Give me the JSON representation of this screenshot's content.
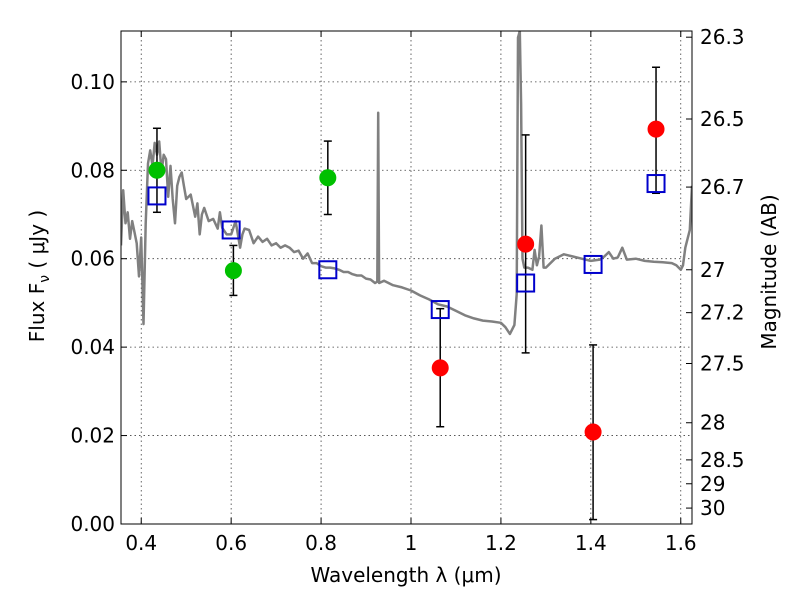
{
  "chart_data": {
    "type": "scatter",
    "xlabel": "Wavelength  λ (μm)",
    "ylabel": "Flux  F",
    "ylabel_sub": "ν",
    "ylabel_unit": "  ( μJy )",
    "y2label": "Magnitude (AB)",
    "xlim": [
      0.355,
      1.625
    ],
    "ylim": [
      0.0,
      0.1115
    ],
    "grid": true,
    "x_ticks": [
      {
        "value": 0.4,
        "label": "0.4"
      },
      {
        "value": 0.6,
        "label": "0.6"
      },
      {
        "value": 0.8,
        "label": "0.8"
      },
      {
        "value": 1.0,
        "label": "1"
      },
      {
        "value": 1.2,
        "label": "1.2"
      },
      {
        "value": 1.4,
        "label": "1.4"
      },
      {
        "value": 1.6,
        "label": "1.6"
      }
    ],
    "y_ticks": [
      {
        "value": 0.0,
        "label": "0.00"
      },
      {
        "value": 0.02,
        "label": "0.02"
      },
      {
        "value": 0.04,
        "label": "0.04"
      },
      {
        "value": 0.06,
        "label": "0.06"
      },
      {
        "value": 0.08,
        "label": "0.08"
      },
      {
        "value": 0.1,
        "label": "0.10"
      }
    ],
    "y2_ticks": [
      {
        "flux": 0.1101,
        "label": "26.3"
      },
      {
        "flux": 0.0916,
        "label": "26.5"
      },
      {
        "flux": 0.0762,
        "label": "26.7"
      },
      {
        "flux": 0.0575,
        "label": "27"
      },
      {
        "flux": 0.0478,
        "label": "27.2"
      },
      {
        "flux": 0.0363,
        "label": "27.5"
      },
      {
        "flux": 0.0229,
        "label": "28"
      },
      {
        "flux": 0.0145,
        "label": "28.5"
      },
      {
        "flux": 0.0091,
        "label": "29"
      },
      {
        "flux": 0.0036,
        "label": "30"
      }
    ],
    "series": [
      {
        "type": "line",
        "color": "#808080",
        "points": [
          [
            0.355,
            0.063
          ],
          [
            0.36,
            0.0755
          ],
          [
            0.365,
            0.068
          ],
          [
            0.37,
            0.0705
          ],
          [
            0.375,
            0.0645
          ],
          [
            0.38,
            0.0685
          ],
          [
            0.385,
            0.066
          ],
          [
            0.39,
            0.0635
          ],
          [
            0.395,
            0.056
          ],
          [
            0.4,
            0.0648
          ],
          [
            0.405,
            0.0452
          ],
          [
            0.41,
            0.068
          ],
          [
            0.415,
            0.0815
          ],
          [
            0.42,
            0.0845
          ],
          [
            0.425,
            0.081
          ],
          [
            0.43,
            0.0862
          ],
          [
            0.435,
            0.0835
          ],
          [
            0.44,
            0.0865
          ],
          [
            0.445,
            0.0795
          ],
          [
            0.45,
            0.0835
          ],
          [
            0.455,
            0.0825
          ],
          [
            0.46,
            0.074
          ],
          [
            0.465,
            0.081
          ],
          [
            0.47,
            0.0735
          ],
          [
            0.475,
            0.068
          ],
          [
            0.48,
            0.0765
          ],
          [
            0.485,
            0.0785
          ],
          [
            0.49,
            0.0795
          ],
          [
            0.495,
            0.0765
          ],
          [
            0.5,
            0.0735
          ],
          [
            0.51,
            0.0745
          ],
          [
            0.52,
            0.0695
          ],
          [
            0.525,
            0.0725
          ],
          [
            0.53,
            0.0655
          ],
          [
            0.535,
            0.07
          ],
          [
            0.54,
            0.0715
          ],
          [
            0.55,
            0.0685
          ],
          [
            0.56,
            0.069
          ],
          [
            0.57,
            0.0668
          ],
          [
            0.575,
            0.0705
          ],
          [
            0.58,
            0.067
          ],
          [
            0.59,
            0.0655
          ],
          [
            0.6,
            0.0655
          ],
          [
            0.61,
            0.0685
          ],
          [
            0.62,
            0.0625
          ],
          [
            0.625,
            0.0655
          ],
          [
            0.63,
            0.0668
          ],
          [
            0.64,
            0.0665
          ],
          [
            0.65,
            0.0635
          ],
          [
            0.66,
            0.065
          ],
          [
            0.67,
            0.0638
          ],
          [
            0.68,
            0.0645
          ],
          [
            0.69,
            0.063
          ],
          [
            0.7,
            0.0635
          ],
          [
            0.71,
            0.0625
          ],
          [
            0.72,
            0.063
          ],
          [
            0.73,
            0.0625
          ],
          [
            0.74,
            0.0615
          ],
          [
            0.75,
            0.0618
          ],
          [
            0.76,
            0.06
          ],
          [
            0.77,
            0.0612
          ],
          [
            0.78,
            0.059
          ],
          [
            0.79,
            0.059
          ],
          [
            0.8,
            0.0583
          ],
          [
            0.81,
            0.058
          ],
          [
            0.82,
            0.058
          ],
          [
            0.83,
            0.0578
          ],
          [
            0.84,
            0.0575
          ],
          [
            0.85,
            0.057
          ],
          [
            0.86,
            0.057
          ],
          [
            0.87,
            0.0565
          ],
          [
            0.88,
            0.0562
          ],
          [
            0.89,
            0.0562
          ],
          [
            0.9,
            0.0555
          ],
          [
            0.91,
            0.0553
          ],
          [
            0.92,
            0.0545
          ],
          [
            0.925,
            0.0548
          ],
          [
            0.927,
            0.093
          ],
          [
            0.929,
            0.0545
          ],
          [
            0.94,
            0.055
          ],
          [
            0.95,
            0.0545
          ],
          [
            0.96,
            0.054
          ],
          [
            0.98,
            0.0535
          ],
          [
            1.0,
            0.0528
          ],
          [
            1.02,
            0.0517
          ],
          [
            1.04,
            0.0508
          ],
          [
            1.06,
            0.0497
          ],
          [
            1.08,
            0.0492
          ],
          [
            1.1,
            0.0482
          ],
          [
            1.12,
            0.0472
          ],
          [
            1.14,
            0.0465
          ],
          [
            1.16,
            0.046
          ],
          [
            1.18,
            0.0458
          ],
          [
            1.2,
            0.0455
          ],
          [
            1.21,
            0.0445
          ],
          [
            1.22,
            0.043
          ],
          [
            1.23,
            0.045
          ],
          [
            1.235,
            0.052
          ],
          [
            1.238,
            0.11
          ],
          [
            1.242,
            0.1115
          ],
          [
            1.245,
            0.095
          ],
          [
            1.248,
            0.06
          ],
          [
            1.252,
            0.058
          ],
          [
            1.26,
            0.058
          ],
          [
            1.27,
            0.0575
          ],
          [
            1.275,
            0.062
          ],
          [
            1.28,
            0.0585
          ],
          [
            1.285,
            0.0605
          ],
          [
            1.29,
            0.0675
          ],
          [
            1.295,
            0.058
          ],
          [
            1.3,
            0.058
          ],
          [
            1.32,
            0.06
          ],
          [
            1.34,
            0.061
          ],
          [
            1.36,
            0.0605
          ],
          [
            1.38,
            0.06
          ],
          [
            1.4,
            0.0595
          ],
          [
            1.42,
            0.0598
          ],
          [
            1.43,
            0.0605
          ],
          [
            1.44,
            0.0615
          ],
          [
            1.45,
            0.06
          ],
          [
            1.46,
            0.0603
          ],
          [
            1.47,
            0.0625
          ],
          [
            1.48,
            0.0598
          ],
          [
            1.5,
            0.06
          ],
          [
            1.52,
            0.0595
          ],
          [
            1.54,
            0.0593
          ],
          [
            1.56,
            0.0592
          ],
          [
            1.58,
            0.059
          ],
          [
            1.59,
            0.0585
          ],
          [
            1.6,
            0.0575
          ],
          [
            1.605,
            0.0585
          ],
          [
            1.61,
            0.0625
          ],
          [
            1.62,
            0.0665
          ],
          [
            1.625,
            0.0765
          ]
        ]
      },
      {
        "type": "points",
        "marker": "circle",
        "color": "#00c000",
        "points": [
          {
            "x": 0.435,
            "y": 0.08,
            "yerr_low": 0.0705,
            "yerr_high": 0.0895
          },
          {
            "x": 0.605,
            "y": 0.0573,
            "yerr_low": 0.0517,
            "yerr_high": 0.063
          },
          {
            "x": 0.815,
            "y": 0.0783,
            "yerr_low": 0.07,
            "yerr_high": 0.0866
          }
        ]
      },
      {
        "type": "points",
        "marker": "circle",
        "color": "#ff0000",
        "points": [
          {
            "x": 1.065,
            "y": 0.0353,
            "yerr_low": 0.022,
            "yerr_high": 0.0487
          },
          {
            "x": 1.255,
            "y": 0.0633,
            "yerr_low": 0.0387,
            "yerr_high": 0.088
          },
          {
            "x": 1.405,
            "y": 0.0208,
            "yerr_low": 0.001,
            "yerr_high": 0.0405
          },
          {
            "x": 1.545,
            "y": 0.0893,
            "yerr_low": 0.0748,
            "yerr_high": 0.1033
          }
        ]
      },
      {
        "type": "points",
        "marker": "square",
        "color": "#0000cc",
        "points": [
          {
            "x": 0.435,
            "y": 0.0742
          },
          {
            "x": 0.6,
            "y": 0.0665
          },
          {
            "x": 0.815,
            "y": 0.0575
          },
          {
            "x": 1.065,
            "y": 0.0485
          },
          {
            "x": 1.255,
            "y": 0.0545
          },
          {
            "x": 1.405,
            "y": 0.0587
          },
          {
            "x": 1.545,
            "y": 0.077
          }
        ]
      }
    ]
  }
}
